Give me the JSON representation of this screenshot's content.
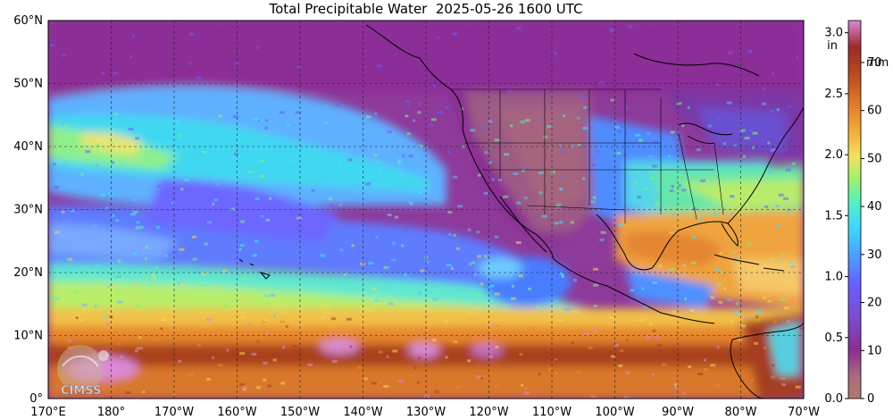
{
  "title": {
    "label": "Total Precipitable Water",
    "timestamp": "2025-05-26 1600 UTC"
  },
  "map": {
    "lat_labels": [
      "60°N",
      "50°N",
      "40°N",
      "30°N",
      "20°N",
      "10°N",
      "0°"
    ],
    "lon_labels": [
      "170°E",
      "180°",
      "170°W",
      "160°W",
      "150°W",
      "140°W",
      "130°W",
      "120°W",
      "110°W",
      "100°W",
      "90°W",
      "80°W",
      "70°W"
    ],
    "colors": {
      "very_dry": "#b07a6e",
      "dry": "#8a2e93",
      "moderate": "#6b5cff",
      "light_blue": "#66b7ff",
      "cyan": "#3fe6ff",
      "green": "#7ef28a",
      "yellow": "#f5d35a",
      "orange": "#e98b2f",
      "brown": "#a8401f",
      "pink": "#d78ad7"
    }
  },
  "colorbar": {
    "left_unit": "in",
    "right_unit": "mm",
    "inch_ticks": [
      "3.0",
      "2.5",
      "2.0",
      "1.5",
      "1.0",
      "0.5",
      "0.0"
    ],
    "mm_ticks": [
      "70",
      "60",
      "50",
      "40",
      "30",
      "20",
      "10",
      "0"
    ]
  },
  "logo": {
    "text": "CIMSS"
  }
}
